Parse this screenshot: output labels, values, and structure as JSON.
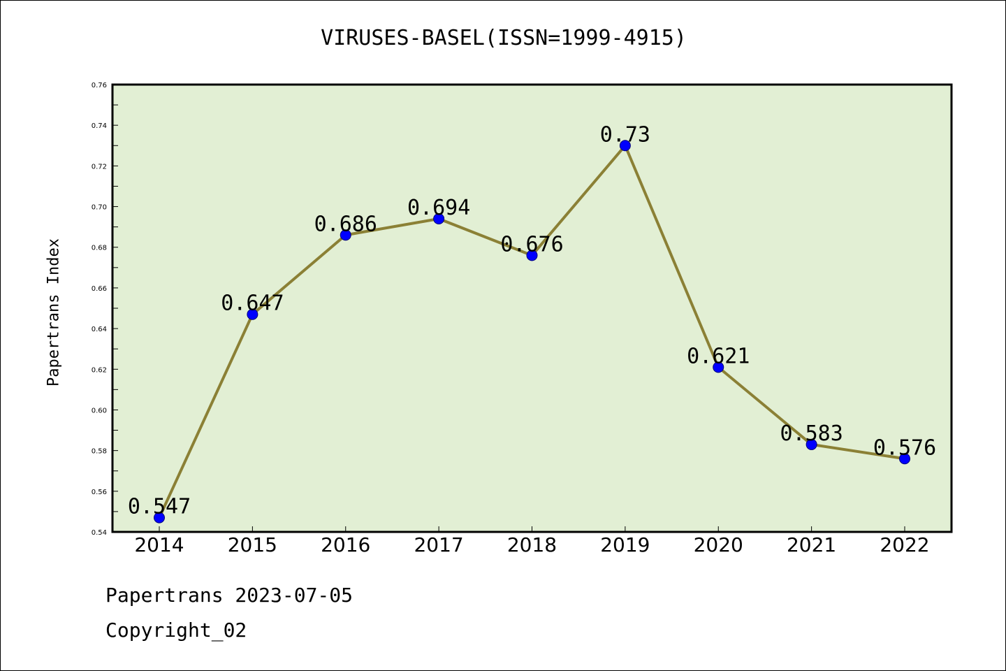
{
  "colors": {
    "plot_background": "#e2efd4",
    "line": "#8b8035",
    "marker": "#0000ff",
    "marker_edge": "#00007a"
  },
  "chart_data": {
    "type": "line",
    "title": "VIRUSES-BASEL(ISSN=1999-4915)",
    "xlabel": "",
    "ylabel": "Papertrans Index",
    "categories": [
      "2014",
      "2015",
      "2016",
      "2017",
      "2018",
      "2019",
      "2020",
      "2021",
      "2022"
    ],
    "values": [
      0.547,
      0.647,
      0.686,
      0.694,
      0.676,
      0.73,
      0.621,
      0.583,
      0.576
    ],
    "data_labels": [
      "0.547",
      "0.647",
      "0.686",
      "0.694",
      "0.676",
      "0.73",
      "0.621",
      "0.583",
      "0.576"
    ],
    "ylim": [
      0.54,
      0.76
    ],
    "yticks": [
      "0.54",
      "0.56",
      "0.58",
      "0.60",
      "0.62",
      "0.64",
      "0.66",
      "0.68",
      "0.70",
      "0.72",
      "0.74",
      "0.76"
    ],
    "grid": false,
    "legend": "none"
  },
  "footer": {
    "line1": "Papertrans 2023-07-05",
    "line2": "Copyright_02"
  }
}
